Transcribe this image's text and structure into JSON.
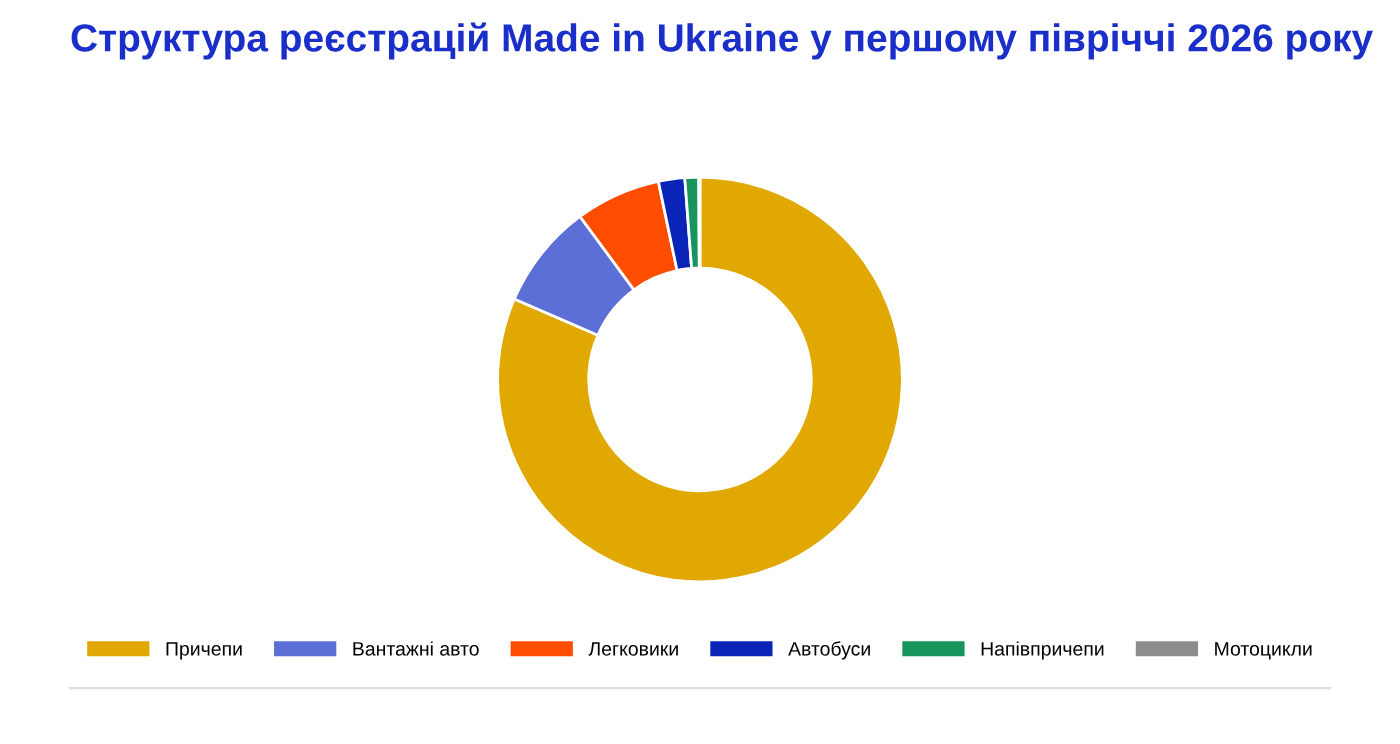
{
  "chart_data": {
    "type": "donut",
    "title": "Структура реєстрацій Made in Ukraine у першому півріччі 2026 року",
    "categories": [
      "Причепи",
      "Вантажні авто",
      "Легковики",
      "Автобуси",
      "Напівпричепи",
      "Мотоцикли"
    ],
    "values": [
      81.5,
      8.4,
      6.8,
      2.1,
      1.1,
      0.1
    ],
    "colors": [
      "#e0a800",
      "#5b6fd6",
      "#ff4d00",
      "#0a24b8",
      "#16955c",
      "#8c8c8c"
    ],
    "legend": "bottom"
  }
}
